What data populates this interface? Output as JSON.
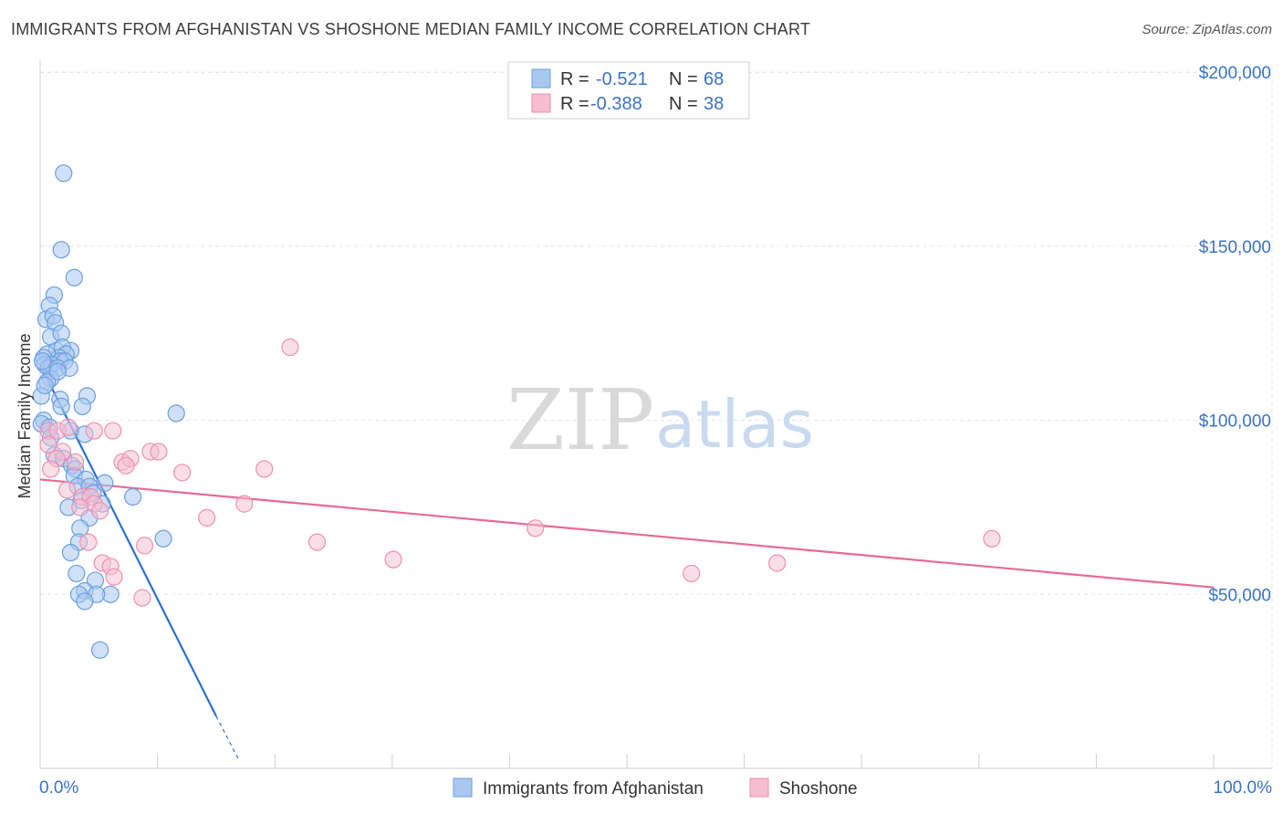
{
  "header": {
    "title": "IMMIGRANTS FROM AFGHANISTAN VS SHOSHONE MEDIAN FAMILY INCOME CORRELATION CHART",
    "source": "Source: ZipAtlas.com"
  },
  "watermark": {
    "part1": "ZIP",
    "part2": "atlas"
  },
  "colors": {
    "blue_fill": "#a9c8f0",
    "blue_stroke": "#6a9ee0",
    "blue_line": "#2a6fd6",
    "pink_fill": "#f6bdd0",
    "pink_stroke": "#ee8fb0",
    "pink_line": "#e86a94",
    "grid": "#e4e4e4",
    "tick_label": "#3a72c8"
  },
  "chart_data": {
    "type": "scatter",
    "title": "IMMIGRANTS FROM AFGHANISTAN VS SHOSHONE MEDIAN FAMILY INCOME CORRELATION CHART",
    "xlabel": "",
    "ylabel": "Median Family Income",
    "xlim": [
      0,
      100
    ],
    "ylim": [
      0,
      210000
    ],
    "x_tick_labels": [
      "0.0%",
      "100.0%"
    ],
    "y_ticks": [
      50000,
      100000,
      150000,
      200000
    ],
    "y_tick_labels": [
      "$50,000",
      "$100,000",
      "$150,000",
      "$200,000"
    ],
    "grid": true,
    "legend_position": "top-center",
    "legend": [
      {
        "r_label": "R =",
        "r_value": "-0.521",
        "n_label": "N =",
        "n_value": "68"
      },
      {
        "r_label": "R =",
        "r_value": "-0.388",
        "n_label": "N =",
        "n_value": "38"
      }
    ],
    "series": [
      {
        "name": "Immigrants from Afghanistan",
        "color": "#a9c8f0",
        "points": [
          [
            2.0,
            171000
          ],
          [
            1.8,
            149000
          ],
          [
            2.9,
            141000
          ],
          [
            1.2,
            136000
          ],
          [
            0.8,
            133000
          ],
          [
            0.5,
            129000
          ],
          [
            1.1,
            130000
          ],
          [
            1.3,
            128000
          ],
          [
            0.9,
            124000
          ],
          [
            1.8,
            125000
          ],
          [
            1.4,
            120000
          ],
          [
            2.6,
            120000
          ],
          [
            1.9,
            121000
          ],
          [
            2.2,
            119000
          ],
          [
            1.6,
            118000
          ],
          [
            0.6,
            119000
          ],
          [
            0.3,
            118000
          ],
          [
            1.7,
            117000
          ],
          [
            0.4,
            116000
          ],
          [
            1.0,
            116000
          ],
          [
            2.1,
            117000
          ],
          [
            0.7,
            115000
          ],
          [
            1.5,
            115000
          ],
          [
            2.5,
            115000
          ],
          [
            0.2,
            117000
          ],
          [
            0.9,
            112000
          ],
          [
            0.6,
            111000
          ],
          [
            0.1,
            107000
          ],
          [
            1.7,
            106000
          ],
          [
            4.0,
            107000
          ],
          [
            3.6,
            104000
          ],
          [
            1.8,
            104000
          ],
          [
            11.6,
            102000
          ],
          [
            0.3,
            100000
          ],
          [
            0.1,
            99000
          ],
          [
            2.6,
            97000
          ],
          [
            0.8,
            98000
          ],
          [
            3.8,
            96000
          ],
          [
            1.2,
            90000
          ],
          [
            2.0,
            89000
          ],
          [
            2.7,
            87000
          ],
          [
            3.0,
            86000
          ],
          [
            2.9,
            84000
          ],
          [
            3.9,
            83000
          ],
          [
            5.5,
            82000
          ],
          [
            3.2,
            81000
          ],
          [
            4.2,
            81000
          ],
          [
            4.5,
            79000
          ],
          [
            7.9,
            78000
          ],
          [
            3.5,
            77000
          ],
          [
            5.3,
            76000
          ],
          [
            2.4,
            75000
          ],
          [
            4.2,
            72000
          ],
          [
            3.4,
            69000
          ],
          [
            10.5,
            66000
          ],
          [
            3.3,
            65000
          ],
          [
            2.6,
            62000
          ],
          [
            3.1,
            56000
          ],
          [
            4.7,
            54000
          ],
          [
            3.8,
            51000
          ],
          [
            6.0,
            50000
          ],
          [
            4.8,
            50000
          ],
          [
            3.3,
            50000
          ],
          [
            3.8,
            48000
          ],
          [
            5.1,
            34000
          ],
          [
            0.4,
            110000
          ],
          [
            1.5,
            114000
          ],
          [
            0.9,
            95000
          ]
        ]
      },
      {
        "name": "Shoshone",
        "color": "#f6bdd0",
        "points": [
          [
            21.3,
            121000
          ],
          [
            0.7,
            97000
          ],
          [
            1.5,
            97000
          ],
          [
            2.4,
            98000
          ],
          [
            6.2,
            97000
          ],
          [
            4.6,
            97000
          ],
          [
            0.7,
            93000
          ],
          [
            1.9,
            91000
          ],
          [
            9.4,
            91000
          ],
          [
            10.1,
            91000
          ],
          [
            1.4,
            89000
          ],
          [
            3.0,
            88000
          ],
          [
            7.0,
            88000
          ],
          [
            7.7,
            89000
          ],
          [
            7.3,
            87000
          ],
          [
            0.9,
            86000
          ],
          [
            12.1,
            85000
          ],
          [
            19.1,
            86000
          ],
          [
            2.3,
            80000
          ],
          [
            3.6,
            78000
          ],
          [
            4.3,
            78000
          ],
          [
            17.4,
            76000
          ],
          [
            4.6,
            76000
          ],
          [
            5.1,
            74000
          ],
          [
            14.2,
            72000
          ],
          [
            42.2,
            69000
          ],
          [
            81.1,
            66000
          ],
          [
            23.6,
            65000
          ],
          [
            8.9,
            64000
          ],
          [
            4.1,
            65000
          ],
          [
            30.1,
            60000
          ],
          [
            5.3,
            59000
          ],
          [
            62.8,
            59000
          ],
          [
            6.0,
            58000
          ],
          [
            6.3,
            55000
          ],
          [
            55.5,
            56000
          ],
          [
            8.7,
            49000
          ],
          [
            3.4,
            75000
          ]
        ]
      }
    ],
    "trend_lines": [
      {
        "series": "Immigrants from Afghanistan",
        "x0": 0.0,
        "y0": 116000,
        "x1": 15.0,
        "y1": 15000,
        "dashed_to_x": 17.0,
        "dashed_to_y": 2000
      },
      {
        "series": "Shoshone",
        "x0": 0.0,
        "y0": 83000,
        "x1": 100.0,
        "y1": 52000
      }
    ]
  }
}
